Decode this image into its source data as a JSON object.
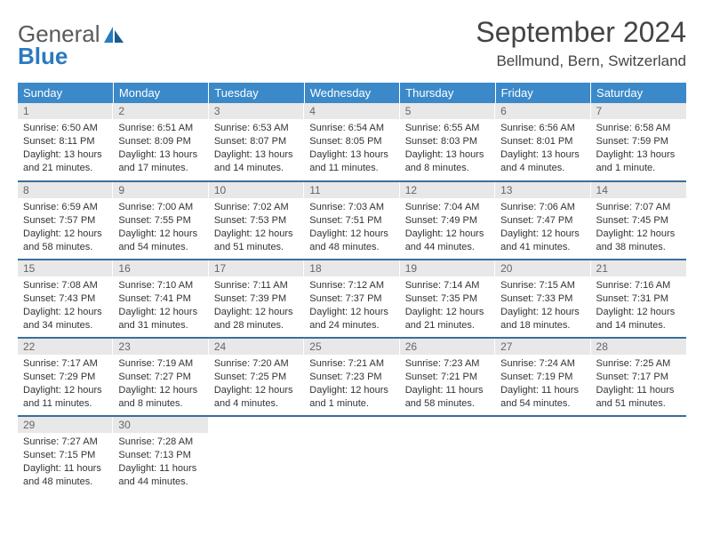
{
  "logo": {
    "word1": "General",
    "word2": "Blue"
  },
  "title": "September 2024",
  "location": "Bellmund, Bern, Switzerland",
  "colors": {
    "header_bg": "#3b89c9",
    "header_text": "#ffffff",
    "row_divider": "#3b6f9c",
    "daynum_bg": "#e8e8e8",
    "body_text": "#333333",
    "logo_gray": "#5a5a5a",
    "logo_blue": "#2a7ac0"
  },
  "weekdays": [
    "Sunday",
    "Monday",
    "Tuesday",
    "Wednesday",
    "Thursday",
    "Friday",
    "Saturday"
  ],
  "days": [
    {
      "n": 1,
      "sunrise": "6:50 AM",
      "sunset": "8:11 PM",
      "daylight": "13 hours and 21 minutes."
    },
    {
      "n": 2,
      "sunrise": "6:51 AM",
      "sunset": "8:09 PM",
      "daylight": "13 hours and 17 minutes."
    },
    {
      "n": 3,
      "sunrise": "6:53 AM",
      "sunset": "8:07 PM",
      "daylight": "13 hours and 14 minutes."
    },
    {
      "n": 4,
      "sunrise": "6:54 AM",
      "sunset": "8:05 PM",
      "daylight": "13 hours and 11 minutes."
    },
    {
      "n": 5,
      "sunrise": "6:55 AM",
      "sunset": "8:03 PM",
      "daylight": "13 hours and 8 minutes."
    },
    {
      "n": 6,
      "sunrise": "6:56 AM",
      "sunset": "8:01 PM",
      "daylight": "13 hours and 4 minutes."
    },
    {
      "n": 7,
      "sunrise": "6:58 AM",
      "sunset": "7:59 PM",
      "daylight": "13 hours and 1 minute."
    },
    {
      "n": 8,
      "sunrise": "6:59 AM",
      "sunset": "7:57 PM",
      "daylight": "12 hours and 58 minutes."
    },
    {
      "n": 9,
      "sunrise": "7:00 AM",
      "sunset": "7:55 PM",
      "daylight": "12 hours and 54 minutes."
    },
    {
      "n": 10,
      "sunrise": "7:02 AM",
      "sunset": "7:53 PM",
      "daylight": "12 hours and 51 minutes."
    },
    {
      "n": 11,
      "sunrise": "7:03 AM",
      "sunset": "7:51 PM",
      "daylight": "12 hours and 48 minutes."
    },
    {
      "n": 12,
      "sunrise": "7:04 AM",
      "sunset": "7:49 PM",
      "daylight": "12 hours and 44 minutes."
    },
    {
      "n": 13,
      "sunrise": "7:06 AM",
      "sunset": "7:47 PM",
      "daylight": "12 hours and 41 minutes."
    },
    {
      "n": 14,
      "sunrise": "7:07 AM",
      "sunset": "7:45 PM",
      "daylight": "12 hours and 38 minutes."
    },
    {
      "n": 15,
      "sunrise": "7:08 AM",
      "sunset": "7:43 PM",
      "daylight": "12 hours and 34 minutes."
    },
    {
      "n": 16,
      "sunrise": "7:10 AM",
      "sunset": "7:41 PM",
      "daylight": "12 hours and 31 minutes."
    },
    {
      "n": 17,
      "sunrise": "7:11 AM",
      "sunset": "7:39 PM",
      "daylight": "12 hours and 28 minutes."
    },
    {
      "n": 18,
      "sunrise": "7:12 AM",
      "sunset": "7:37 PM",
      "daylight": "12 hours and 24 minutes."
    },
    {
      "n": 19,
      "sunrise": "7:14 AM",
      "sunset": "7:35 PM",
      "daylight": "12 hours and 21 minutes."
    },
    {
      "n": 20,
      "sunrise": "7:15 AM",
      "sunset": "7:33 PM",
      "daylight": "12 hours and 18 minutes."
    },
    {
      "n": 21,
      "sunrise": "7:16 AM",
      "sunset": "7:31 PM",
      "daylight": "12 hours and 14 minutes."
    },
    {
      "n": 22,
      "sunrise": "7:17 AM",
      "sunset": "7:29 PM",
      "daylight": "12 hours and 11 minutes."
    },
    {
      "n": 23,
      "sunrise": "7:19 AM",
      "sunset": "7:27 PM",
      "daylight": "12 hours and 8 minutes."
    },
    {
      "n": 24,
      "sunrise": "7:20 AM",
      "sunset": "7:25 PM",
      "daylight": "12 hours and 4 minutes."
    },
    {
      "n": 25,
      "sunrise": "7:21 AM",
      "sunset": "7:23 PM",
      "daylight": "12 hours and 1 minute."
    },
    {
      "n": 26,
      "sunrise": "7:23 AM",
      "sunset": "7:21 PM",
      "daylight": "11 hours and 58 minutes."
    },
    {
      "n": 27,
      "sunrise": "7:24 AM",
      "sunset": "7:19 PM",
      "daylight": "11 hours and 54 minutes."
    },
    {
      "n": 28,
      "sunrise": "7:25 AM",
      "sunset": "7:17 PM",
      "daylight": "11 hours and 51 minutes."
    },
    {
      "n": 29,
      "sunrise": "7:27 AM",
      "sunset": "7:15 PM",
      "daylight": "11 hours and 48 minutes."
    },
    {
      "n": 30,
      "sunrise": "7:28 AM",
      "sunset": "7:13 PM",
      "daylight": "11 hours and 44 minutes."
    }
  ],
  "labels": {
    "sunrise": "Sunrise:",
    "sunset": "Sunset:",
    "daylight": "Daylight:"
  }
}
